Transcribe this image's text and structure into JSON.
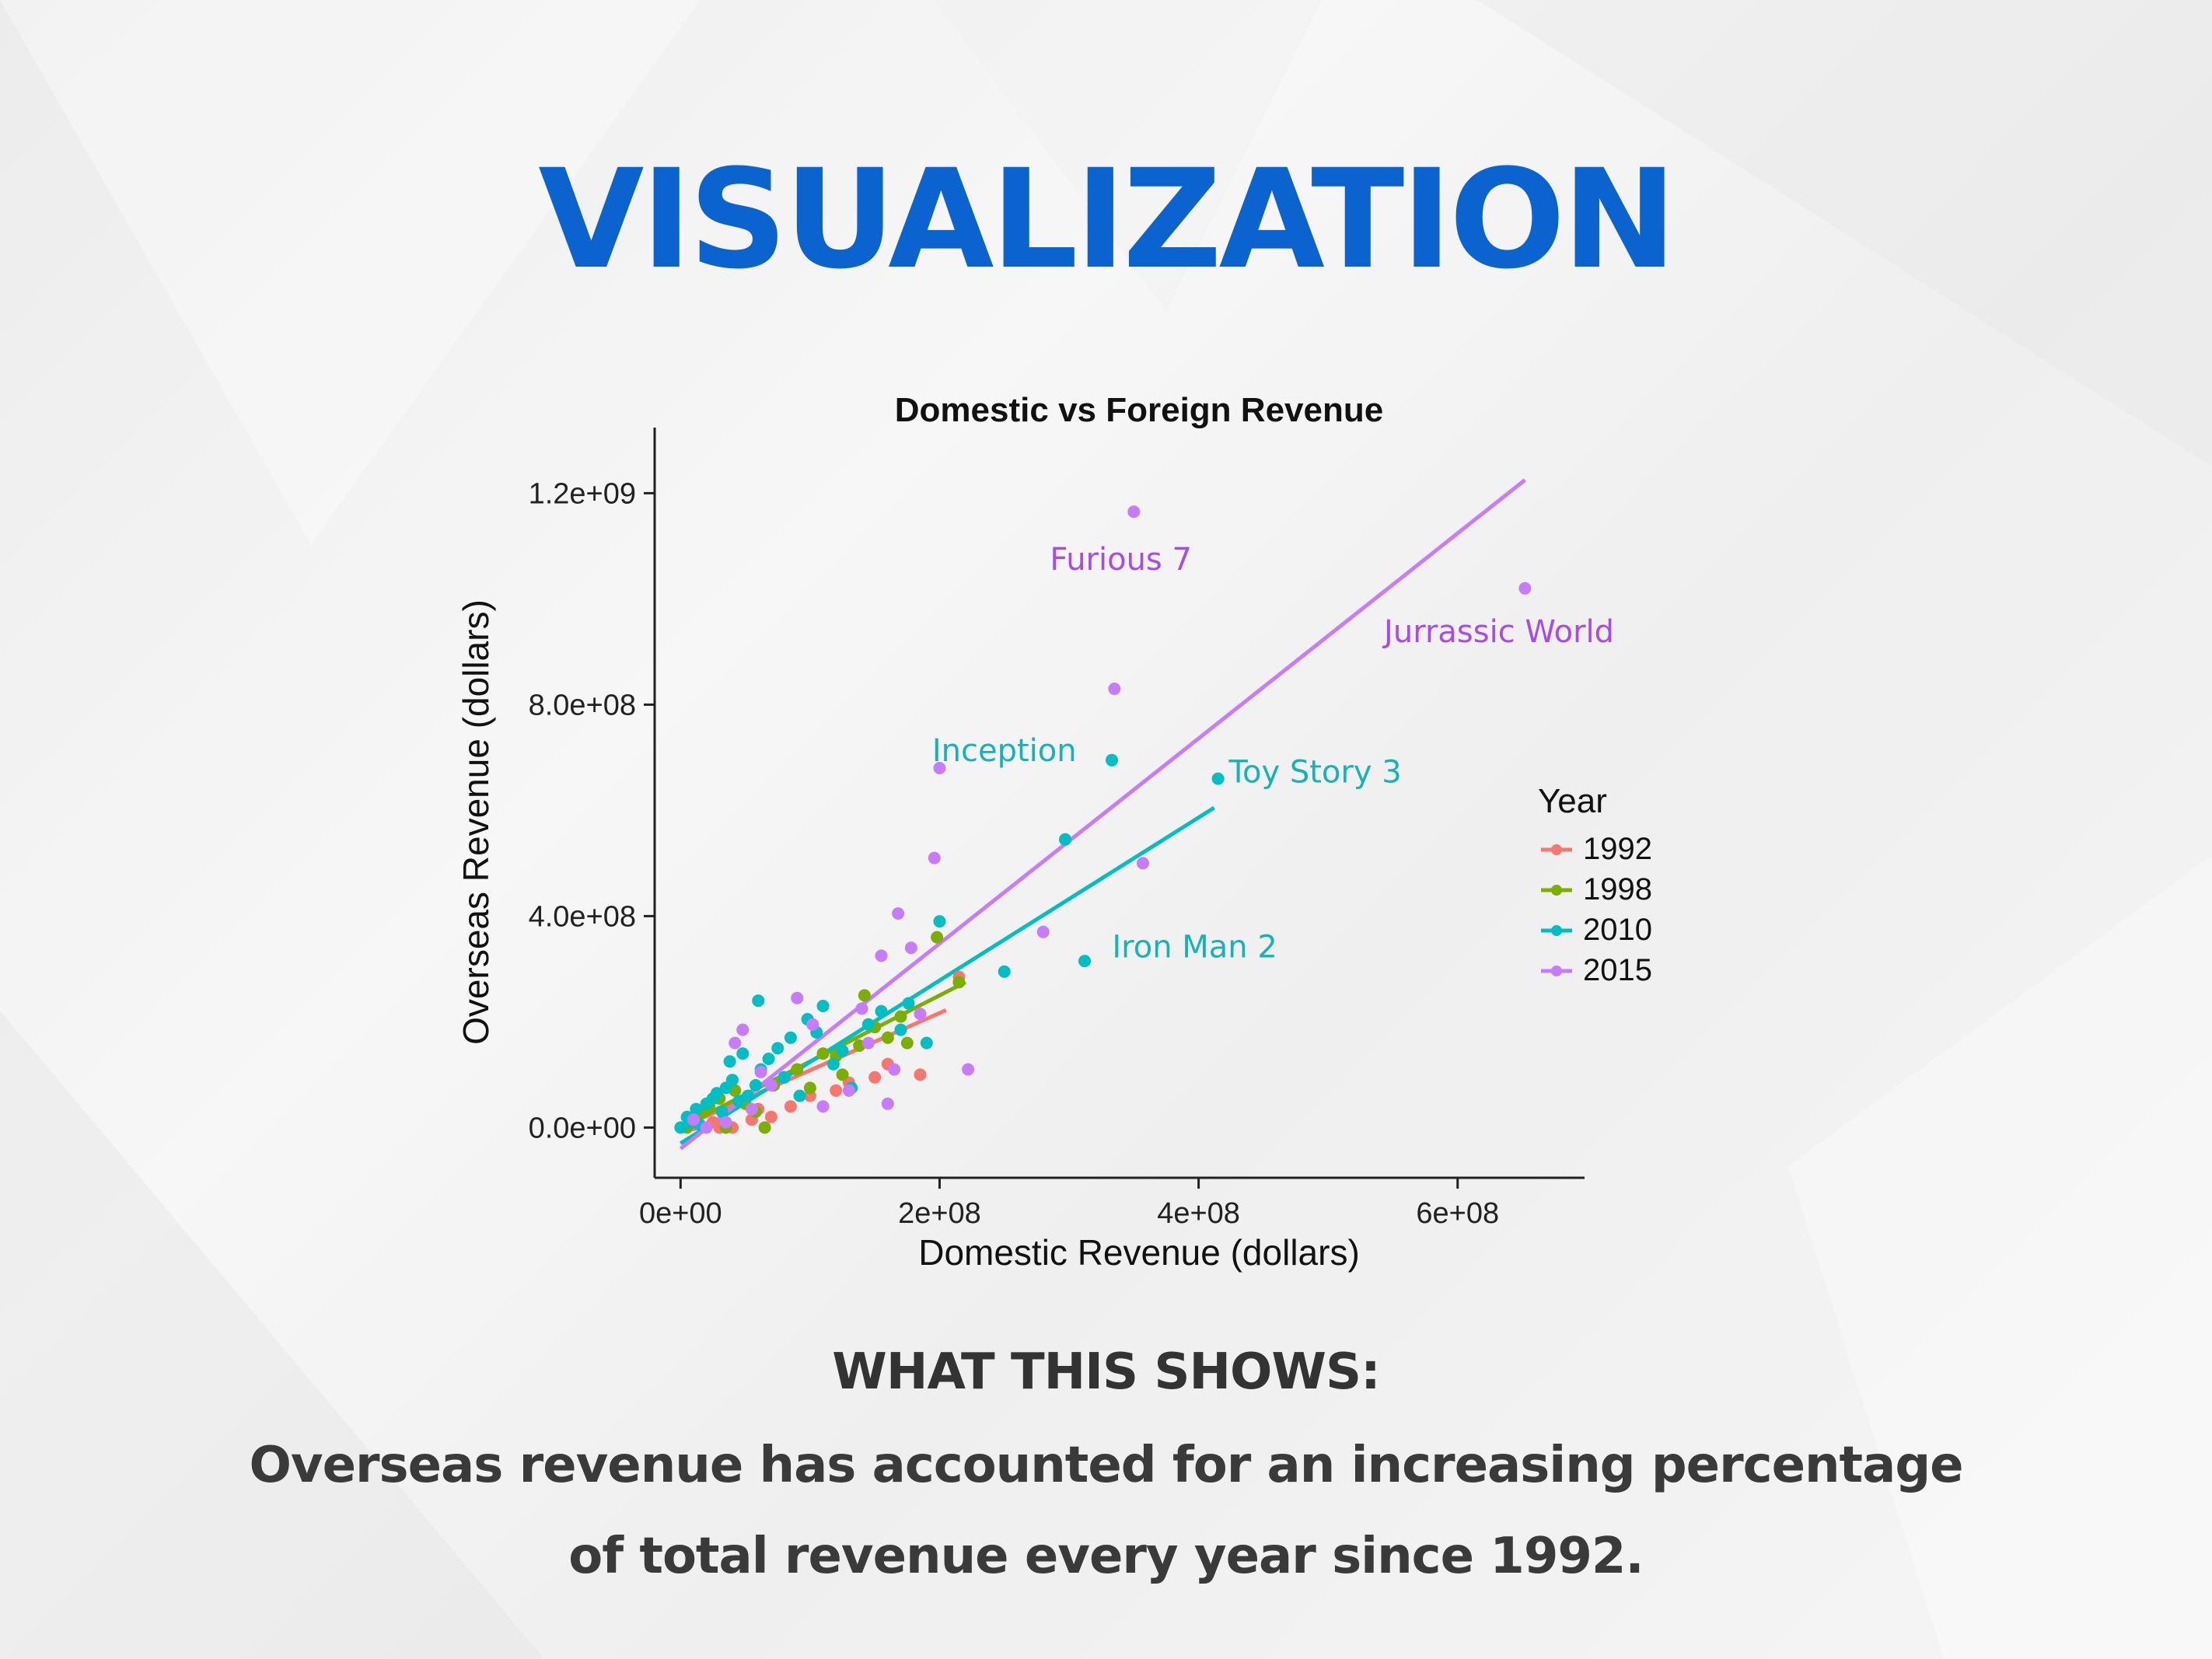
{
  "slide": {
    "title": "VISUALIZATION",
    "caption_heading": "WHAT THIS SHOWS:",
    "caption_lines": [
      "Overseas revenue has accounted for an increasing percentage",
      "of total revenue every year since 1992."
    ],
    "title_color": "#0b63cf"
  },
  "chart_data": {
    "type": "scatter",
    "title": "Domestic vs Foreign Revenue",
    "xlabel": "Domestic Revenue (dollars)",
    "ylabel": "Overseas Revenue (dollars)",
    "xlim": [
      -20000000,
      680000000
    ],
    "ylim": [
      -95000000,
      1280000000
    ],
    "xticks": [
      0,
      200000000,
      400000000,
      600000000
    ],
    "xtick_labels": [
      "0e+00",
      "2e+08",
      "4e+08",
      "6e+08"
    ],
    "yticks": [
      0,
      400000000,
      800000000,
      1200000000
    ],
    "ytick_labels": [
      "0.0e+00",
      "4.0e+08",
      "8.0e+08",
      "1.2e+09"
    ],
    "grid": false,
    "legend": {
      "title": "Year",
      "position": "right"
    },
    "series": [
      {
        "name": "1992",
        "color": "#f8766d",
        "points": [
          [
            10000000,
            5000000
          ],
          [
            25000000,
            10000000
          ],
          [
            40000000,
            0
          ],
          [
            55000000,
            15000000
          ],
          [
            70000000,
            20000000
          ],
          [
            85000000,
            40000000
          ],
          [
            100000000,
            60000000
          ],
          [
            120000000,
            70000000
          ],
          [
            160000000,
            120000000
          ],
          [
            185000000,
            100000000
          ],
          [
            215000000,
            285000000
          ],
          [
            30000000,
            0
          ],
          [
            60000000,
            35000000
          ],
          [
            130000000,
            85000000
          ],
          [
            150000000,
            95000000
          ]
        ],
        "fit": [
          [
            0,
            0
          ],
          [
            205000000,
            222000000
          ]
        ]
      },
      {
        "name": "1998",
        "color": "#7cae00",
        "points": [
          [
            5000000,
            0
          ],
          [
            12000000,
            15000000
          ],
          [
            18000000,
            30000000
          ],
          [
            22000000,
            40000000
          ],
          [
            30000000,
            55000000
          ],
          [
            35000000,
            0
          ],
          [
            42000000,
            70000000
          ],
          [
            50000000,
            45000000
          ],
          [
            58000000,
            30000000
          ],
          [
            65000000,
            0
          ],
          [
            72000000,
            80000000
          ],
          [
            80000000,
            95000000
          ],
          [
            90000000,
            110000000
          ],
          [
            100000000,
            75000000
          ],
          [
            110000000,
            140000000
          ],
          [
            125000000,
            100000000
          ],
          [
            138000000,
            155000000
          ],
          [
            142000000,
            250000000
          ],
          [
            150000000,
            190000000
          ],
          [
            170000000,
            210000000
          ],
          [
            175000000,
            160000000
          ],
          [
            198000000,
            360000000
          ],
          [
            215000000,
            275000000
          ],
          [
            120000000,
            135000000
          ],
          [
            160000000,
            170000000
          ]
        ],
        "fit": [
          [
            0,
            0
          ],
          [
            220000000,
            275000000
          ]
        ]
      },
      {
        "name": "2010",
        "color": "#00bfc4",
        "points": [
          [
            0,
            0
          ],
          [
            5000000,
            20000000
          ],
          [
            8000000,
            10000000
          ],
          [
            12000000,
            35000000
          ],
          [
            15000000,
            5000000
          ],
          [
            20000000,
            45000000
          ],
          [
            25000000,
            55000000
          ],
          [
            28000000,
            65000000
          ],
          [
            32000000,
            30000000
          ],
          [
            35000000,
            75000000
          ],
          [
            38000000,
            125000000
          ],
          [
            40000000,
            90000000
          ],
          [
            45000000,
            50000000
          ],
          [
            48000000,
            140000000
          ],
          [
            52000000,
            60000000
          ],
          [
            58000000,
            80000000
          ],
          [
            60000000,
            240000000
          ],
          [
            62000000,
            110000000
          ],
          [
            68000000,
            130000000
          ],
          [
            75000000,
            150000000
          ],
          [
            80000000,
            95000000
          ],
          [
            85000000,
            170000000
          ],
          [
            92000000,
            60000000
          ],
          [
            98000000,
            205000000
          ],
          [
            105000000,
            180000000
          ],
          [
            110000000,
            230000000
          ],
          [
            118000000,
            120000000
          ],
          [
            125000000,
            145000000
          ],
          [
            132000000,
            75000000
          ],
          [
            145000000,
            195000000
          ],
          [
            155000000,
            220000000
          ],
          [
            170000000,
            185000000
          ],
          [
            176000000,
            235000000
          ],
          [
            190000000,
            160000000
          ],
          [
            200000000,
            390000000
          ],
          [
            250000000,
            295000000
          ],
          [
            297000000,
            545000000
          ],
          [
            312000000,
            315000000
          ],
          [
            333000000,
            695000000
          ],
          [
            415000000,
            660000000
          ]
        ],
        "fit": [
          [
            0,
            -30000000
          ],
          [
            412000000,
            605000000
          ]
        ]
      },
      {
        "name": "2015",
        "color": "#c77cff",
        "points": [
          [
            10000000,
            15000000
          ],
          [
            20000000,
            0
          ],
          [
            35000000,
            10000000
          ],
          [
            42000000,
            160000000
          ],
          [
            48000000,
            185000000
          ],
          [
            55000000,
            35000000
          ],
          [
            62000000,
            105000000
          ],
          [
            70000000,
            80000000
          ],
          [
            90000000,
            245000000
          ],
          [
            102000000,
            195000000
          ],
          [
            110000000,
            40000000
          ],
          [
            130000000,
            70000000
          ],
          [
            145000000,
            160000000
          ],
          [
            155000000,
            325000000
          ],
          [
            160000000,
            45000000
          ],
          [
            165000000,
            110000000
          ],
          [
            168000000,
            405000000
          ],
          [
            178000000,
            340000000
          ],
          [
            196000000,
            510000000
          ],
          [
            200000000,
            680000000
          ],
          [
            222000000,
            110000000
          ],
          [
            280000000,
            370000000
          ],
          [
            335000000,
            830000000
          ],
          [
            350000000,
            1165000000
          ],
          [
            357000000,
            500000000
          ],
          [
            652000000,
            1020000000
          ],
          [
            140000000,
            225000000
          ],
          [
            185000000,
            215000000
          ]
        ],
        "fit": [
          [
            0,
            -40000000
          ],
          [
            652000000,
            1225000000
          ]
        ]
      }
    ],
    "annotations": [
      {
        "text": "Furious 7",
        "x": 340000000,
        "y": 1055000000,
        "color": "#a94be8"
      },
      {
        "text": "Jurrassic World",
        "x": 632000000,
        "y": 918000000,
        "color": "#a94be8"
      },
      {
        "text": "Inception",
        "x": 250000000,
        "y": 693000000,
        "color": "#16b3b6"
      },
      {
        "text": "Toy Story 3",
        "x": 490000000,
        "y": 653000000,
        "color": "#16b3b6"
      },
      {
        "text": "Iron Man 2",
        "x": 397000000,
        "y": 322000000,
        "color": "#16b3b6"
      }
    ]
  }
}
